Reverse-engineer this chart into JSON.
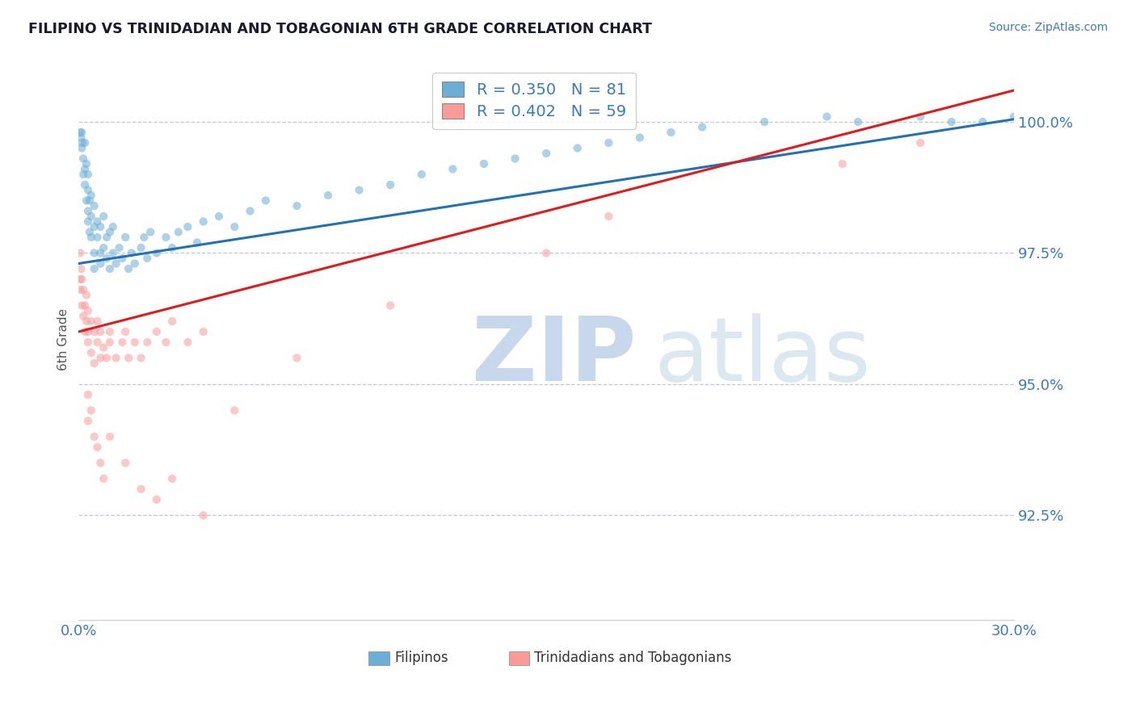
{
  "title": "FILIPINO VS TRINIDADIAN AND TOBAGONIAN 6TH GRADE CORRELATION CHART",
  "source": "Source: ZipAtlas.com",
  "ylabel": "6th Grade",
  "xlim": [
    0.0,
    30.0
  ],
  "ylim": [
    90.5,
    101.2
  ],
  "yticks": [
    92.5,
    95.0,
    97.5,
    100.0
  ],
  "ytick_labels": [
    "92.5%",
    "95.0%",
    "97.5%",
    "100.0%"
  ],
  "xtick_labels": [
    "0.0%",
    "30.0%"
  ],
  "legend_blue_R": 0.35,
  "legend_blue_N": 81,
  "legend_pink_R": 0.402,
  "legend_pink_N": 59,
  "blue_color": "#6baed6",
  "pink_color": "#fb9a99",
  "blue_line_color": "#2171b5",
  "pink_line_color": "#e31a1c",
  "dot_size": 55,
  "dot_alpha": 0.55,
  "background_color": "#ffffff",
  "blue_line_x0": 0.0,
  "blue_line_y0": 97.3,
  "blue_line_x1": 30.0,
  "blue_line_y1": 100.05,
  "pink_line_x0": 0.0,
  "pink_line_y0": 96.0,
  "pink_line_x1": 30.0,
  "pink_line_y1": 100.6,
  "blue_scatter_x": [
    0.1,
    0.1,
    0.15,
    0.15,
    0.2,
    0.2,
    0.2,
    0.25,
    0.25,
    0.3,
    0.3,
    0.3,
    0.3,
    0.35,
    0.35,
    0.4,
    0.4,
    0.4,
    0.5,
    0.5,
    0.5,
    0.5,
    0.6,
    0.6,
    0.7,
    0.7,
    0.7,
    0.8,
    0.8,
    0.9,
    0.9,
    1.0,
    1.0,
    1.1,
    1.1,
    1.2,
    1.3,
    1.4,
    1.5,
    1.6,
    1.7,
    1.8,
    2.0,
    2.1,
    2.2,
    2.3,
    2.5,
    2.8,
    3.0,
    3.2,
    3.5,
    3.8,
    4.0,
    4.5,
    5.0,
    5.5,
    6.0,
    7.0,
    8.0,
    9.0,
    10.0,
    11.0,
    12.0,
    13.0,
    14.0,
    15.0,
    16.0,
    17.0,
    18.0,
    19.0,
    20.0,
    22.0,
    24.0,
    25.0,
    27.0,
    28.0,
    29.0,
    30.0,
    0.05,
    0.08,
    0.12
  ],
  "blue_scatter_y": [
    99.8,
    99.5,
    99.3,
    99.0,
    98.8,
    99.6,
    99.1,
    98.5,
    99.2,
    98.3,
    98.7,
    99.0,
    98.1,
    98.5,
    97.9,
    98.2,
    98.6,
    97.8,
    98.0,
    97.5,
    98.4,
    97.2,
    97.8,
    98.1,
    97.5,
    98.0,
    97.3,
    97.6,
    98.2,
    97.4,
    97.8,
    97.2,
    97.9,
    97.5,
    98.0,
    97.3,
    97.6,
    97.4,
    97.8,
    97.2,
    97.5,
    97.3,
    97.6,
    97.8,
    97.4,
    97.9,
    97.5,
    97.8,
    97.6,
    97.9,
    98.0,
    97.7,
    98.1,
    98.2,
    98.0,
    98.3,
    98.5,
    98.4,
    98.6,
    98.7,
    98.8,
    99.0,
    99.1,
    99.2,
    99.3,
    99.4,
    99.5,
    99.6,
    99.7,
    99.8,
    99.9,
    100.0,
    100.1,
    100.0,
    100.1,
    100.0,
    100.0,
    100.1,
    99.8,
    99.7,
    99.6
  ],
  "pink_scatter_x": [
    0.05,
    0.05,
    0.05,
    0.08,
    0.1,
    0.1,
    0.15,
    0.15,
    0.2,
    0.2,
    0.25,
    0.25,
    0.3,
    0.3,
    0.3,
    0.4,
    0.4,
    0.5,
    0.5,
    0.6,
    0.6,
    0.7,
    0.7,
    0.8,
    0.9,
    1.0,
    1.0,
    1.2,
    1.4,
    1.5,
    1.6,
    1.8,
    2.0,
    2.2,
    2.5,
    2.8,
    3.0,
    3.5,
    4.0,
    0.3,
    0.3,
    0.4,
    0.5,
    0.6,
    0.7,
    0.8,
    1.0,
    1.5,
    2.0,
    2.5,
    3.0,
    4.0,
    5.0,
    7.0,
    10.0,
    15.0,
    17.0,
    24.5,
    27.0
  ],
  "pink_scatter_y": [
    97.5,
    97.0,
    96.8,
    97.2,
    96.5,
    97.0,
    96.3,
    96.8,
    96.0,
    96.5,
    96.2,
    96.7,
    96.0,
    96.4,
    95.8,
    96.2,
    95.6,
    96.0,
    95.4,
    95.8,
    96.2,
    95.5,
    96.0,
    95.7,
    95.5,
    95.8,
    96.0,
    95.5,
    95.8,
    96.0,
    95.5,
    95.8,
    95.5,
    95.8,
    96.0,
    95.8,
    96.2,
    95.8,
    96.0,
    94.8,
    94.3,
    94.5,
    94.0,
    93.8,
    93.5,
    93.2,
    94.0,
    93.5,
    93.0,
    92.8,
    93.2,
    92.5,
    94.5,
    95.5,
    96.5,
    97.5,
    98.2,
    99.2,
    99.6
  ]
}
